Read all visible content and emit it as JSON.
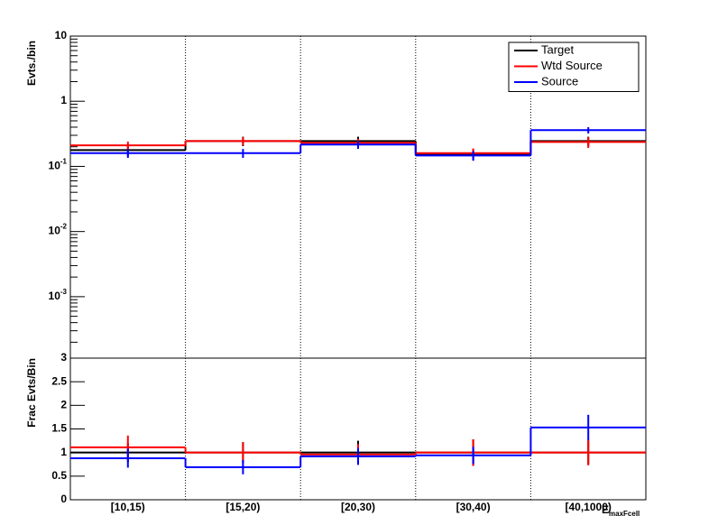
{
  "chart_data": [
    {
      "type": "histogram",
      "y_label": "Evts./bin",
      "log_y": true,
      "ylim": [
        0.000114,
        10
      ],
      "yticks": [
        {
          "value": 10,
          "label": "10"
        },
        {
          "value": 1,
          "label": "1"
        },
        {
          "value": 0.1,
          "label": "10",
          "exponent": "-1"
        },
        {
          "value": 0.01,
          "label": "10",
          "exponent": "-2"
        },
        {
          "value": 0.001,
          "label": "10",
          "exponent": "-3"
        }
      ],
      "legend": "top-right",
      "series": [
        {
          "name": "Target",
          "color": "#000000",
          "values": [
            0.178,
            0.245,
            0.245,
            0.156,
            0.245
          ],
          "errors": [
            0.035,
            0.04,
            0.04,
            0.03,
            0.04
          ]
        },
        {
          "name": "Wtd Source",
          "color": "#ff0000",
          "values": [
            0.21,
            0.245,
            0.23,
            0.16,
            0.237
          ],
          "errors": [
            0.03,
            0.035,
            0.035,
            0.028,
            0.045
          ]
        },
        {
          "name": "Source",
          "color": "#0000ff",
          "values": [
            0.16,
            0.16,
            0.216,
            0.147,
            0.36
          ],
          "errors": [
            0.025,
            0.025,
            0.03,
            0.025,
            0.04
          ]
        }
      ]
    },
    {
      "type": "histogram",
      "y_label": "Frac Evts/Bin",
      "x_label": "E",
      "x_label_sub": "maxFcell",
      "categories": [
        "[10,15)",
        "[15,20)",
        "[20,30)",
        "[30,40)",
        "[40,1000)"
      ],
      "ylim": [
        0,
        3
      ],
      "yticks": [
        0,
        0.5,
        1,
        1.5,
        2,
        2.5,
        3
      ],
      "series": [
        {
          "color": "#000000",
          "values": [
            1,
            1,
            1,
            1,
            1
          ],
          "errors": [
            0.2,
            0.22,
            0.25,
            0.28,
            0.25
          ]
        },
        {
          "color": "#ff0000",
          "values": [
            1.11,
            1.0,
            0.96,
            1.0,
            1.0
          ],
          "errors": [
            0.25,
            0.22,
            0.22,
            0.28,
            0.27
          ]
        },
        {
          "color": "#0000ff",
          "values": [
            0.88,
            0.69,
            0.92,
            0.94,
            1.53
          ],
          "errors": [
            0.2,
            0.15,
            0.18,
            0.18,
            0.27
          ]
        }
      ]
    }
  ]
}
